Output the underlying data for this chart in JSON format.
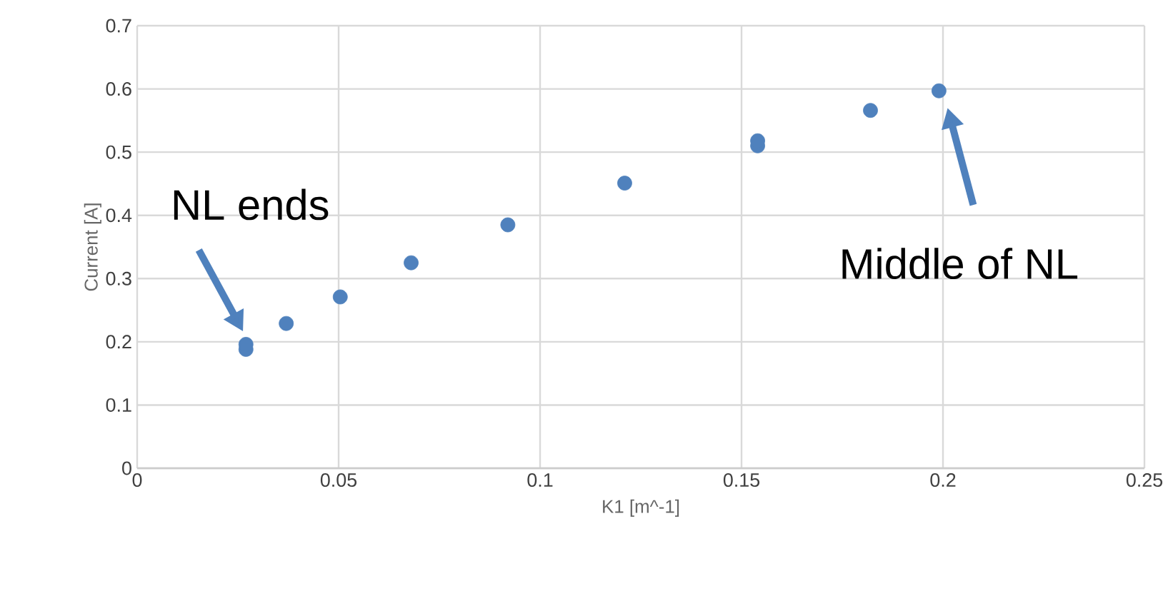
{
  "chart_data": {
    "type": "scatter",
    "xlabel": "K1 [m^-1]",
    "ylabel": "Current [A]",
    "x": [
      0.027,
      0.027,
      0.037,
      0.0504,
      0.068,
      0.092,
      0.121,
      0.154,
      0.154,
      0.182,
      0.199
    ],
    "values": [
      0.188,
      0.196,
      0.229,
      0.271,
      0.325,
      0.385,
      0.451,
      0.51,
      0.518,
      0.566,
      0.597
    ],
    "color": "#4f81bd",
    "xlim": [
      0,
      0.25
    ],
    "xticks": [
      0,
      0.05,
      0.1,
      0.15,
      0.2,
      0.25
    ],
    "ylim": [
      0,
      0.7
    ],
    "yticks": [
      0,
      0.1,
      0.2,
      0.3,
      0.4,
      0.5,
      0.6,
      0.7
    ],
    "grid": true,
    "annotations": [
      {
        "text": "NL ends",
        "x": 0.027,
        "y": 0.196
      },
      "Middle of NL"
    ]
  }
}
